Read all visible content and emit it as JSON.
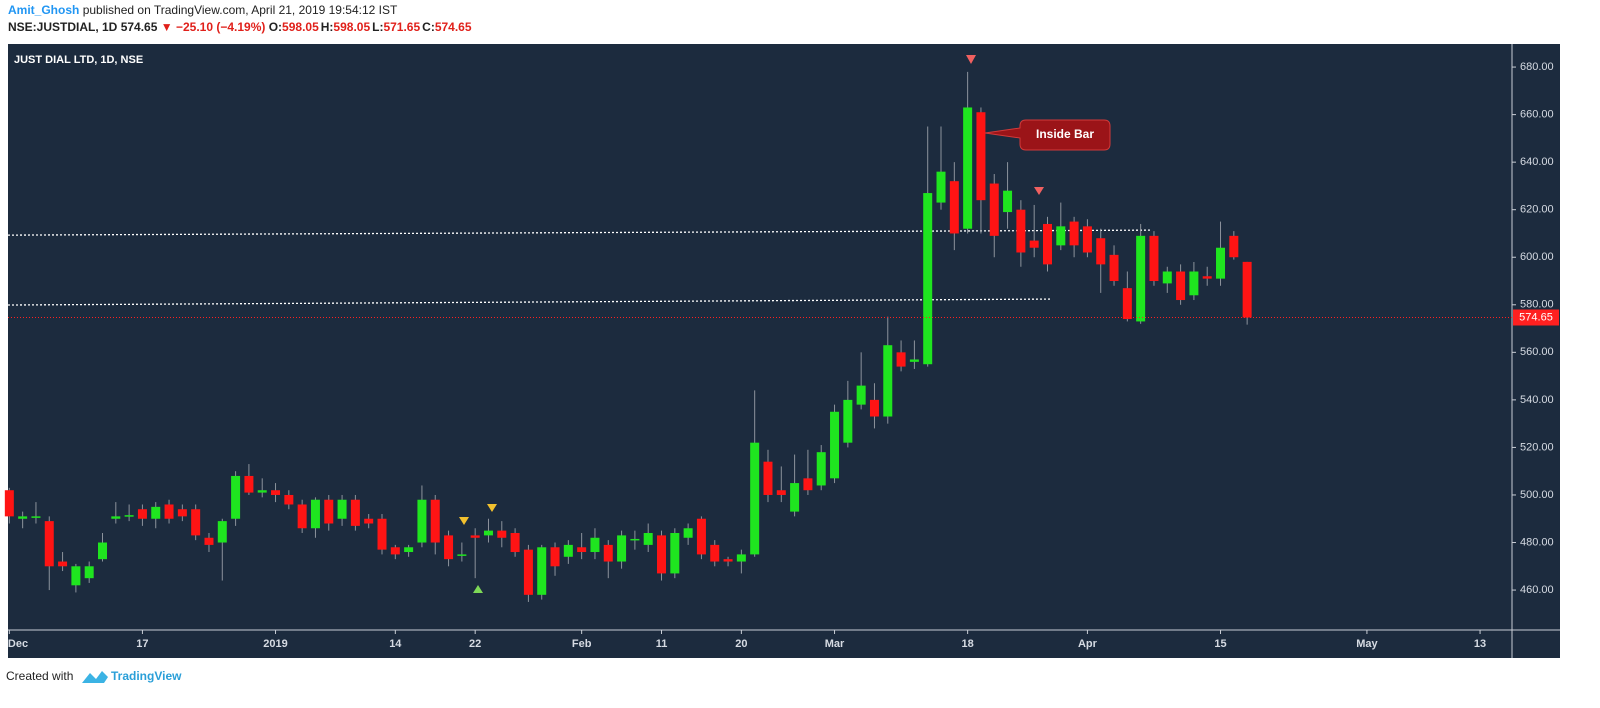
{
  "header": {
    "author": "Amit_Ghosh",
    "published": "published on TradingView.com, April 21, 2019 19:54:12 IST",
    "symbol": "NSE:JUSTDIAL, 1D",
    "price": "574.65",
    "change": "▼ −25.10 (−4.19%)",
    "ohlc": [
      {
        "key": "O:",
        "value": "598.05"
      },
      {
        "key": "H:",
        "value": "598.05"
      },
      {
        "key": "L:",
        "value": "571.65"
      },
      {
        "key": "C:",
        "value": "574.65"
      }
    ]
  },
  "chart_data": {
    "type": "candlestick",
    "title": "JUST DIAL LTD, 1D, NSE",
    "annotation": "Inside Bar",
    "up_color": "#1fe51f",
    "down_color": "#ff1414",
    "wick_color": "#8c939c",
    "price_line_color": "#ff2020",
    "open": [
      502,
      490,
      491,
      489,
      472,
      462,
      465,
      473,
      490,
      491,
      494,
      490,
      496,
      494,
      494,
      482,
      480,
      490,
      508,
      501,
      502,
      500,
      496,
      486,
      498,
      490,
      498,
      490,
      490,
      478,
      476,
      480,
      498,
      483,
      475,
      483,
      483,
      485,
      484,
      477,
      458,
      478,
      474,
      478,
      476,
      479,
      472,
      481,
      479,
      483,
      467,
      482,
      490,
      479,
      473,
      472,
      475,
      514,
      502,
      493,
      507,
      504,
      507,
      522,
      538,
      540,
      533,
      560,
      556,
      555,
      623,
      632,
      612,
      661,
      631,
      619,
      620,
      607,
      614,
      605,
      615,
      613,
      608,
      601,
      587,
      573,
      609,
      589,
      594,
      584,
      592,
      591,
      609,
      598.05
    ],
    "high": [
      503,
      493,
      497,
      491,
      476,
      471,
      472,
      484,
      497,
      496,
      496,
      497,
      498,
      496,
      496,
      484,
      490,
      510,
      513,
      507,
      505,
      502,
      498,
      499,
      500,
      500,
      500,
      492,
      492,
      479,
      479,
      504,
      500,
      485,
      480,
      486,
      490,
      489,
      486,
      479,
      479,
      480,
      481,
      484,
      486,
      481,
      485,
      485,
      488,
      485,
      486,
      488,
      491,
      481,
      474,
      477,
      544,
      519,
      512,
      517,
      519,
      521,
      538,
      548,
      560,
      547,
      575,
      565,
      565,
      655,
      655,
      640,
      678,
      663,
      635,
      640,
      624,
      622,
      617,
      623,
      617,
      616,
      612,
      605,
      594,
      614,
      611,
      596,
      597,
      598,
      596,
      615,
      611,
      598.05
    ],
    "low": [
      488,
      486,
      488,
      460,
      468,
      459,
      463,
      472,
      488,
      489,
      487,
      486,
      488,
      489,
      481,
      476,
      464,
      487,
      500,
      499,
      497,
      494,
      484,
      482,
      485,
      487,
      485,
      486,
      475,
      473,
      474,
      478,
      475,
      470,
      472,
      465,
      480,
      478,
      474,
      455,
      456,
      466,
      471,
      473,
      473,
      465,
      469,
      477,
      476,
      464,
      465,
      479,
      473,
      470,
      470,
      467,
      474,
      497,
      497,
      491,
      500,
      502,
      505,
      520,
      536,
      528,
      530,
      552,
      553,
      554,
      620,
      603,
      610,
      610,
      600,
      612,
      596,
      600,
      594,
      603,
      600,
      600,
      585,
      588,
      573,
      572,
      588,
      585,
      580,
      582,
      588,
      588,
      599,
      571.65
    ],
    "close": [
      491,
      491,
      491,
      470,
      470,
      470,
      470,
      480,
      491,
      491.5,
      490,
      495,
      490,
      491,
      483,
      479,
      489,
      508,
      501,
      502,
      500,
      496,
      486,
      498,
      488,
      498,
      487,
      488,
      477,
      475,
      478,
      498,
      480,
      473,
      475,
      482,
      485,
      482,
      476,
      458,
      478,
      470,
      479,
      476,
      482,
      472,
      483,
      481.5,
      484,
      467,
      484,
      486,
      475,
      472,
      472,
      475,
      522,
      500,
      500,
      505,
      502,
      518,
      535,
      540,
      546,
      533,
      563,
      554,
      557,
      627,
      636,
      610,
      663,
      624,
      609,
      628,
      602,
      604,
      597,
      613,
      605,
      602,
      597,
      590,
      574,
      609,
      590,
      594,
      582,
      594,
      591,
      604,
      600,
      574.65
    ],
    "trendlines": [
      {
        "x": [
          -0.1,
          85.7
        ],
        "y": [
          609.3,
          611.4
        ]
      },
      {
        "x": [
          -0.1,
          78.2
        ],
        "y": [
          579.9,
          582.4
        ]
      }
    ],
    "xlim": [
      -0.1,
      112.9
    ],
    "xticks": [
      {
        "value": 0,
        "label": "Dec"
      },
      {
        "value": 10,
        "label": "17"
      },
      {
        "value": 20,
        "label": "2019"
      },
      {
        "value": 29,
        "label": "14"
      },
      {
        "value": 35,
        "label": "22"
      },
      {
        "value": 43,
        "label": "Feb"
      },
      {
        "value": 49,
        "label": "11"
      },
      {
        "value": 55,
        "label": "20"
      },
      {
        "value": 62,
        "label": "Mar"
      },
      {
        "value": 72,
        "label": "18"
      },
      {
        "value": 81,
        "label": "Apr"
      },
      {
        "value": 91,
        "label": "15"
      },
      {
        "value": 102,
        "label": "May"
      },
      {
        "value": 110.5,
        "label": "13"
      }
    ],
    "ylim": [
      443.2,
      689.7
    ],
    "yticks": [
      {
        "value": 460,
        "label": "460.00"
      },
      {
        "value": 480,
        "label": "480.00"
      },
      {
        "value": 500,
        "label": "500.00"
      },
      {
        "value": 520,
        "label": "520.00"
      },
      {
        "value": 540,
        "label": "540.00"
      },
      {
        "value": 560,
        "label": "560.00"
      },
      {
        "value": 580,
        "label": "580.00"
      },
      {
        "value": 600,
        "label": "600.00"
      },
      {
        "value": 620,
        "label": "620.00"
      },
      {
        "value": 640,
        "label": "640.00"
      },
      {
        "value": 660,
        "label": "660.00"
      },
      {
        "value": 680,
        "label": "680.00"
      }
    ]
  },
  "footer": {
    "text": "Created with",
    "brand": "TradingView"
  }
}
